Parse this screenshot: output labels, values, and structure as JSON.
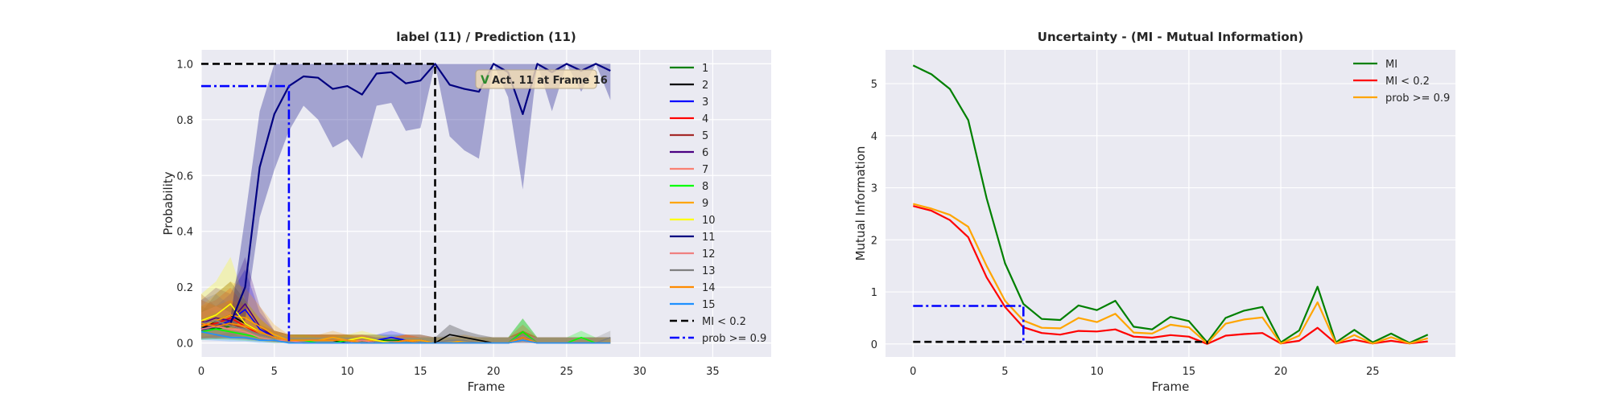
{
  "chart_data": [
    {
      "type": "line",
      "title": "label (11) / Prediction (11)",
      "xlabel": "Frame",
      "ylabel": "Probability",
      "xlim": [
        0,
        39
      ],
      "ylim": [
        -0.05,
        1.05
      ],
      "xticks": [
        0,
        5,
        10,
        15,
        20,
        25,
        30,
        35
      ],
      "yticks": [
        0.0,
        0.2,
        0.4,
        0.6,
        0.8,
        1.0
      ],
      "grid": true,
      "legend_position": "upper-right-inside",
      "x": [
        0,
        1,
        2,
        3,
        4,
        5,
        6,
        7,
        8,
        9,
        10,
        11,
        12,
        13,
        14,
        15,
        16,
        17,
        18,
        19,
        20,
        21,
        22,
        23,
        24,
        25,
        26,
        27,
        28
      ],
      "series": [
        {
          "name": "1",
          "color": "#008000",
          "values": [
            0.06,
            0.05,
            0.06,
            0.05,
            0.03,
            0.02,
            0.01,
            0.01,
            0.01,
            0.01,
            0.01,
            0.01,
            0.01,
            0.01,
            0.01,
            0.01,
            0.0,
            0.0,
            0.0,
            0.0,
            0.0,
            0.0,
            0.04,
            0.0,
            0.0,
            0.0,
            0.0,
            0.0,
            0.0
          ]
        },
        {
          "name": "2",
          "color": "#000000",
          "values": [
            0.05,
            0.08,
            0.1,
            0.07,
            0.04,
            0.02,
            0.01,
            0.01,
            0.01,
            0.01,
            0.0,
            0.01,
            0.0,
            0.0,
            0.01,
            0.0,
            0.0,
            0.03,
            0.02,
            0.01,
            0.0,
            0.0,
            0.02,
            0.0,
            0.0,
            0.0,
            0.0,
            0.0,
            0.0
          ]
        },
        {
          "name": "3",
          "color": "#0000ff",
          "values": [
            0.07,
            0.06,
            0.08,
            0.12,
            0.05,
            0.02,
            0.01,
            0.01,
            0.01,
            0.01,
            0.01,
            0.01,
            0.01,
            0.02,
            0.01,
            0.01,
            0.0,
            0.0,
            0.0,
            0.0,
            0.0,
            0.0,
            0.01,
            0.0,
            0.0,
            0.0,
            0.0,
            0.0,
            0.0
          ]
        },
        {
          "name": "4",
          "color": "#ff0000",
          "values": [
            0.06,
            0.07,
            0.09,
            0.06,
            0.03,
            0.02,
            0.01,
            0.01,
            0.01,
            0.01,
            0.01,
            0.01,
            0.0,
            0.0,
            0.01,
            0.0,
            0.0,
            0.0,
            0.0,
            0.0,
            0.0,
            0.0,
            0.02,
            0.0,
            0.0,
            0.0,
            0.0,
            0.0,
            0.0
          ]
        },
        {
          "name": "5",
          "color": "#a52a2a",
          "values": [
            0.08,
            0.06,
            0.07,
            0.05,
            0.03,
            0.02,
            0.01,
            0.01,
            0.01,
            0.01,
            0.01,
            0.0,
            0.0,
            0.0,
            0.0,
            0.0,
            0.0,
            0.0,
            0.0,
            0.0,
            0.0,
            0.0,
            0.02,
            0.0,
            0.0,
            0.0,
            0.0,
            0.0,
            0.0
          ]
        },
        {
          "name": "6",
          "color": "#4b0082",
          "values": [
            0.07,
            0.09,
            0.08,
            0.14,
            0.06,
            0.02,
            0.01,
            0.01,
            0.01,
            0.01,
            0.01,
            0.0,
            0.0,
            0.0,
            0.0,
            0.0,
            0.0,
            0.0,
            0.0,
            0.0,
            0.0,
            0.0,
            0.02,
            0.0,
            0.0,
            0.0,
            0.0,
            0.0,
            0.0
          ]
        },
        {
          "name": "7",
          "color": "#fa8072",
          "values": [
            0.05,
            0.06,
            0.05,
            0.05,
            0.03,
            0.02,
            0.01,
            0.01,
            0.01,
            0.01,
            0.01,
            0.0,
            0.0,
            0.0,
            0.01,
            0.01,
            0.0,
            0.0,
            0.0,
            0.0,
            0.0,
            0.0,
            0.01,
            0.0,
            0.0,
            0.0,
            0.0,
            0.0,
            0.0
          ]
        },
        {
          "name": "8",
          "color": "#00ff00",
          "values": [
            0.04,
            0.05,
            0.04,
            0.03,
            0.02,
            0.01,
            0.01,
            0.01,
            0.0,
            0.0,
            0.01,
            0.0,
            0.0,
            0.0,
            0.0,
            0.0,
            0.0,
            0.0,
            0.0,
            0.0,
            0.0,
            0.0,
            0.04,
            0.0,
            0.0,
            0.0,
            0.02,
            0.0,
            0.0
          ]
        },
        {
          "name": "9",
          "color": "#ffa500",
          "values": [
            0.06,
            0.08,
            0.1,
            0.09,
            0.06,
            0.03,
            0.01,
            0.01,
            0.01,
            0.02,
            0.01,
            0.01,
            0.01,
            0.0,
            0.01,
            0.01,
            0.0,
            0.0,
            0.01,
            0.0,
            0.0,
            0.0,
            0.03,
            0.0,
            0.0,
            0.0,
            0.0,
            0.0,
            0.0
          ]
        },
        {
          "name": "10",
          "color": "#ffff00",
          "values": [
            0.08,
            0.1,
            0.14,
            0.07,
            0.04,
            0.02,
            0.01,
            0.01,
            0.01,
            0.01,
            0.01,
            0.02,
            0.01,
            0.0,
            0.0,
            0.0,
            0.0,
            0.0,
            0.0,
            0.0,
            0.0,
            0.0,
            0.01,
            0.0,
            0.0,
            0.0,
            0.0,
            0.0,
            0.0
          ]
        },
        {
          "name": "11",
          "color": "#000080",
          "values": [
            0.05,
            0.06,
            0.07,
            0.2,
            0.63,
            0.82,
            0.92,
            0.955,
            0.95,
            0.91,
            0.92,
            0.89,
            0.965,
            0.97,
            0.93,
            0.94,
            1.0,
            0.925,
            0.91,
            0.9,
            1.0,
            0.97,
            0.82,
            1.0,
            0.97,
            1.0,
            0.975,
            1.0,
            0.975
          ]
        },
        {
          "name": "12",
          "color": "#f08080",
          "values": [
            0.05,
            0.06,
            0.05,
            0.04,
            0.02,
            0.01,
            0.01,
            0.0,
            0.0,
            0.0,
            0.0,
            0.01,
            0.0,
            0.0,
            0.01,
            0.0,
            0.0,
            0.0,
            0.0,
            0.0,
            0.0,
            0.0,
            0.01,
            0.0,
            0.0,
            0.0,
            0.0,
            0.0,
            0.0
          ]
        },
        {
          "name": "13",
          "color": "#808080",
          "values": [
            0.07,
            0.08,
            0.06,
            0.05,
            0.03,
            0.02,
            0.01,
            0.01,
            0.01,
            0.01,
            0.01,
            0.0,
            0.0,
            0.0,
            0.0,
            0.0,
            0.0,
            0.01,
            0.01,
            0.0,
            0.0,
            0.0,
            0.03,
            0.0,
            0.0,
            0.0,
            0.0,
            0.0,
            0.02
          ]
        },
        {
          "name": "14",
          "color": "#ff8c00",
          "values": [
            0.07,
            0.06,
            0.07,
            0.06,
            0.04,
            0.02,
            0.01,
            0.01,
            0.01,
            0.01,
            0.01,
            0.0,
            0.0,
            0.0,
            0.01,
            0.0,
            0.0,
            0.0,
            0.0,
            0.0,
            0.0,
            0.0,
            0.02,
            0.0,
            0.0,
            0.0,
            0.0,
            0.0,
            0.0
          ]
        },
        {
          "name": "15",
          "color": "#1e90ff",
          "values": [
            0.04,
            0.03,
            0.02,
            0.02,
            0.01,
            0.01,
            0.0,
            0.0,
            0.0,
            0.0,
            0.0,
            0.0,
            0.0,
            0.0,
            0.0,
            0.0,
            0.0,
            0.0,
            0.0,
            0.0,
            0.0,
            0.0,
            0.01,
            0.0,
            0.0,
            0.0,
            0.0,
            0.0,
            0.0
          ]
        }
      ],
      "band_series": "11",
      "band_lower": [
        0.04,
        0.05,
        0.06,
        0.08,
        0.45,
        0.62,
        0.76,
        0.85,
        0.8,
        0.7,
        0.73,
        0.66,
        0.85,
        0.86,
        0.76,
        0.77,
        1.0,
        0.74,
        0.69,
        0.66,
        1.0,
        0.88,
        0.55,
        1.0,
        0.83,
        1.0,
        0.9,
        1.0,
        0.87
      ],
      "band_upper": [
        0.07,
        0.08,
        0.09,
        0.45,
        0.83,
        1.0,
        1.0,
        1.0,
        1.0,
        1.0,
        1.0,
        1.0,
        1.0,
        1.0,
        1.0,
        1.0,
        1.0,
        1.0,
        1.0,
        1.0,
        1.0,
        1.0,
        1.0,
        1.0,
        1.0,
        1.0,
        1.0,
        1.0,
        1.0
      ],
      "reference_lines": [
        {
          "name": "MI < 0.2",
          "style": "dashed",
          "color": "#000000",
          "points": [
            [
              0,
              1.0
            ],
            [
              16,
              1.0
            ],
            [
              16,
              0.0
            ]
          ]
        },
        {
          "name": "prob >= 0.9",
          "style": "dashdot",
          "color": "#0000ff",
          "points": [
            [
              0,
              0.92
            ],
            [
              6,
              0.92
            ],
            [
              6,
              0.0
            ]
          ]
        }
      ],
      "annotation": {
        "x": 16,
        "y": 0.94,
        "icon": "V",
        "text": "Act. 11 at Frame 16"
      },
      "legend": [
        "1",
        "2",
        "3",
        "4",
        "5",
        "6",
        "7",
        "8",
        "9",
        "10",
        "11",
        "12",
        "13",
        "14",
        "15",
        "MI < 0.2",
        "prob >= 0.9"
      ]
    },
    {
      "type": "line",
      "title": "Uncertainty - (MI - Mutual Information)",
      "xlabel": "Frame",
      "ylabel": "Mutual Information",
      "xlim": [
        -1.5,
        29.5
      ],
      "ylim": [
        -0.25,
        5.65
      ],
      "xticks": [
        0,
        5,
        10,
        15,
        20,
        25
      ],
      "yticks": [
        0,
        1,
        2,
        3,
        4,
        5
      ],
      "grid": true,
      "legend_position": "upper-right",
      "x": [
        0,
        1,
        2,
        3,
        4,
        5,
        6,
        7,
        8,
        9,
        10,
        11,
        12,
        13,
        14,
        15,
        16,
        17,
        18,
        19,
        20,
        21,
        22,
        23,
        24,
        25,
        26,
        27,
        28
      ],
      "series": [
        {
          "name": "MI",
          "color": "#008000",
          "values": [
            5.35,
            5.18,
            4.9,
            4.3,
            2.8,
            1.55,
            0.77,
            0.48,
            0.46,
            0.74,
            0.65,
            0.83,
            0.33,
            0.28,
            0.52,
            0.44,
            0.03,
            0.5,
            0.64,
            0.71,
            0.03,
            0.26,
            1.1,
            0.03,
            0.27,
            0.03,
            0.2,
            0.02,
            0.18
          ]
        },
        {
          "name": "MI < 0.2",
          "color": "#ff0000",
          "values": [
            2.65,
            2.56,
            2.38,
            2.05,
            1.28,
            0.71,
            0.32,
            0.21,
            0.18,
            0.25,
            0.24,
            0.28,
            0.14,
            0.12,
            0.17,
            0.14,
            0.0,
            0.16,
            0.19,
            0.21,
            0.01,
            0.06,
            0.31,
            0.01,
            0.08,
            0.01,
            0.06,
            0.01,
            0.05
          ]
        },
        {
          "name": "prob >= 0.9",
          "color": "#ffa500",
          "values": [
            2.69,
            2.6,
            2.48,
            2.25,
            1.5,
            0.83,
            0.45,
            0.31,
            0.3,
            0.5,
            0.42,
            0.58,
            0.22,
            0.2,
            0.37,
            0.32,
            0.01,
            0.39,
            0.47,
            0.51,
            0.01,
            0.16,
            0.8,
            0.01,
            0.17,
            0.01,
            0.13,
            0.01,
            0.11
          ]
        }
      ],
      "reference_lines": [
        {
          "name": "MI < 0.2",
          "style": "dashed",
          "color": "#000000",
          "points": [
            [
              0,
              0.04
            ],
            [
              16,
              0.04
            ],
            [
              16,
              0.0
            ]
          ]
        },
        {
          "name": "prob >= 0.9",
          "style": "dashdot",
          "color": "#0000ff",
          "points": [
            [
              0,
              0.73
            ],
            [
              6,
              0.73
            ],
            [
              6,
              0.0
            ]
          ]
        }
      ],
      "legend": [
        "MI",
        "MI < 0.2",
        "prob >= 0.9"
      ]
    }
  ]
}
